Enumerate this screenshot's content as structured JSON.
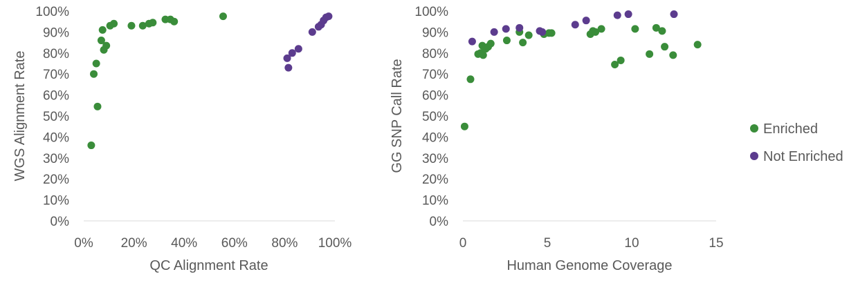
{
  "legend": {
    "placement": "right",
    "entries": [
      {
        "label": "Enriched",
        "color": "#3a8d3a"
      },
      {
        "label": "Not Enriched",
        "color": "#5c3c8e"
      }
    ]
  },
  "chart_data": [
    {
      "type": "scatter",
      "xlabel": "QC Alignment Rate",
      "ylabel": "WGS Alignment Rate",
      "xlim": [
        0,
        1
      ],
      "ylim": [
        0,
        1
      ],
      "x_ticks": [
        "0%",
        "20%",
        "40%",
        "60%",
        "80%",
        "100%"
      ],
      "y_ticks": [
        "0%",
        "10%",
        "20%",
        "30%",
        "40%",
        "50%",
        "60%",
        "70%",
        "80%",
        "90%",
        "100%"
      ],
      "grid": false,
      "series": [
        {
          "name": "Enriched",
          "color": "#3a8d3a",
          "points": [
            [
              0.03,
              0.36
            ],
            [
              0.04,
              0.7
            ],
            [
              0.05,
              0.75
            ],
            [
              0.055,
              0.545
            ],
            [
              0.07,
              0.86
            ],
            [
              0.075,
              0.91
            ],
            [
              0.08,
              0.815
            ],
            [
              0.09,
              0.835
            ],
            [
              0.105,
              0.93
            ],
            [
              0.12,
              0.94
            ],
            [
              0.19,
              0.93
            ],
            [
              0.235,
              0.93
            ],
            [
              0.26,
              0.94
            ],
            [
              0.275,
              0.945
            ],
            [
              0.325,
              0.96
            ],
            [
              0.345,
              0.96
            ],
            [
              0.36,
              0.95
            ],
            [
              0.555,
              0.975
            ]
          ]
        },
        {
          "name": "Not Enriched",
          "color": "#5c3c8e",
          "points": [
            [
              0.81,
              0.775
            ],
            [
              0.815,
              0.73
            ],
            [
              0.83,
              0.8
            ],
            [
              0.855,
              0.82
            ],
            [
              0.91,
              0.9
            ],
            [
              0.935,
              0.925
            ],
            [
              0.945,
              0.935
            ],
            [
              0.955,
              0.955
            ],
            [
              0.965,
              0.97
            ],
            [
              0.975,
              0.975
            ]
          ]
        }
      ]
    },
    {
      "type": "scatter",
      "xlabel": "Human Genome Coverage",
      "ylabel": "GG SNP Call Rate",
      "xlim": [
        0,
        15
      ],
      "ylim": [
        0,
        1
      ],
      "x_ticks": [
        "0",
        "5",
        "10",
        "15"
      ],
      "y_ticks": [
        "0%",
        "10%",
        "20%",
        "30%",
        "40%",
        "50%",
        "60%",
        "70%",
        "80%",
        "90%",
        "100%"
      ],
      "grid": false,
      "series": [
        {
          "name": "Enriched",
          "color": "#3a8d3a",
          "points": [
            [
              0.1,
              0.45
            ],
            [
              0.45,
              0.675
            ],
            [
              0.9,
              0.795
            ],
            [
              1.05,
              0.8
            ],
            [
              1.15,
              0.835
            ],
            [
              1.2,
              0.79
            ],
            [
              1.35,
              0.82
            ],
            [
              1.5,
              0.83
            ],
            [
              1.65,
              0.845
            ],
            [
              2.6,
              0.86
            ],
            [
              3.35,
              0.9
            ],
            [
              3.55,
              0.85
            ],
            [
              3.9,
              0.885
            ],
            [
              4.8,
              0.89
            ],
            [
              5.1,
              0.895
            ],
            [
              5.25,
              0.895
            ],
            [
              7.55,
              0.89
            ],
            [
              7.7,
              0.905
            ],
            [
              7.85,
              0.9
            ],
            [
              8.2,
              0.915
            ],
            [
              9.0,
              0.745
            ],
            [
              9.35,
              0.765
            ],
            [
              10.2,
              0.915
            ],
            [
              11.05,
              0.795
            ],
            [
              11.45,
              0.92
            ],
            [
              11.8,
              0.905
            ],
            [
              11.95,
              0.83
            ],
            [
              12.45,
              0.79
            ],
            [
              13.9,
              0.84
            ]
          ]
        },
        {
          "name": "Not Enriched",
          "color": "#5c3c8e",
          "points": [
            [
              0.55,
              0.855
            ],
            [
              1.85,
              0.9
            ],
            [
              2.55,
              0.915
            ],
            [
              3.35,
              0.92
            ],
            [
              4.55,
              0.905
            ],
            [
              4.7,
              0.9
            ],
            [
              6.65,
              0.935
            ],
            [
              7.3,
              0.955
            ],
            [
              9.15,
              0.98
            ],
            [
              9.8,
              0.985
            ],
            [
              12.5,
              0.985
            ]
          ]
        }
      ]
    }
  ]
}
